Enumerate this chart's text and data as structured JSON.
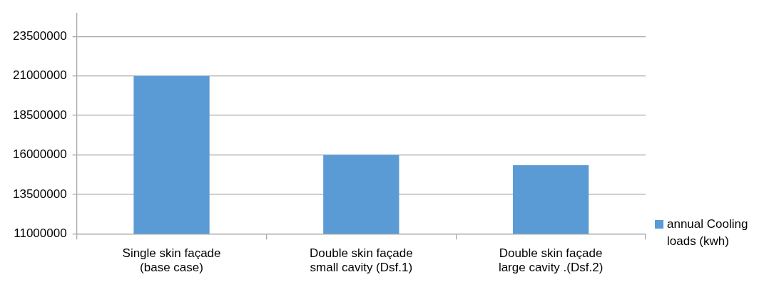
{
  "chart_data": {
    "type": "bar",
    "categories": [
      "Single skin façade (base case)",
      "Double skin façade small cavity (Dsf.1)",
      "Double skin façade large cavity .(Dsf.2)"
    ],
    "series": [
      {
        "name": "annual Cooling loads (kwh)",
        "color": "#5b9bd5",
        "values": [
          21000000,
          16000000,
          15350000
        ]
      }
    ],
    "ylim": [
      11000000,
      25000000
    ],
    "yticks": [
      11000000,
      13500000,
      16000000,
      18500000,
      21000000,
      23500000
    ],
    "grid": "y",
    "legend": "right"
  }
}
